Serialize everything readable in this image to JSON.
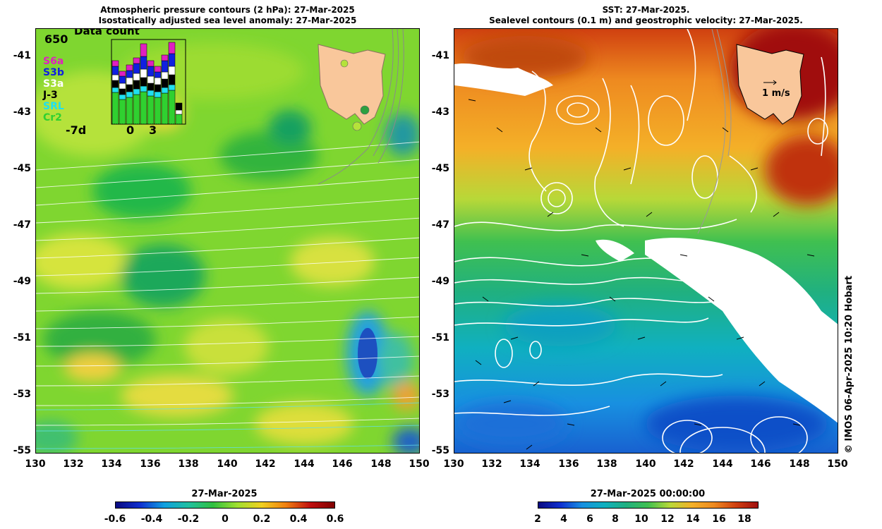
{
  "left": {
    "title_line1": "Atmospheric pressure contours (2 hPa): 27-Mar-2025",
    "title_line2": "Isostatically adjusted sea level anomaly: 27-Mar-2025",
    "colorbar_title": "27-Mar-2025",
    "colorbar_ticks": [
      "-0.6",
      "-0.4",
      "-0.2",
      "0",
      "0.2",
      "0.4",
      "0.6"
    ],
    "inset": {
      "title": "Data count",
      "ymax": "650",
      "series": [
        {
          "label": "S6a",
          "color": "#e020c0"
        },
        {
          "label": "S3b",
          "color": "#1020e0"
        },
        {
          "label": "S3a",
          "color": "#ffffff"
        },
        {
          "label": "J-3",
          "color": "#000000"
        },
        {
          "label": "SRL",
          "color": "#20e0f0"
        },
        {
          "label": "Cr2",
          "color": "#30d030"
        }
      ],
      "xticks": [
        "-7d",
        "0",
        "3"
      ]
    }
  },
  "right": {
    "title_line1": "SST: 27-Mar-2025.",
    "title_line2": "Sealevel contours (0.1 m) and geostrophic velocity: 27-Mar-2025.",
    "colorbar_title": "27-Mar-2025 00:00:00",
    "colorbar_ticks": [
      "2",
      "4",
      "6",
      "8",
      "10",
      "12",
      "14",
      "16",
      "18"
    ],
    "velocity_scale": "1 m/s"
  },
  "y_ticks": [
    "-41",
    "-43",
    "-45",
    "-47",
    "-49",
    "-51",
    "-53",
    "-55"
  ],
  "x_ticks": [
    "130",
    "132",
    "134",
    "136",
    "138",
    "140",
    "142",
    "144",
    "146",
    "148",
    "150"
  ],
  "credit": "© IMOS 06-Apr-2025 10:20 Hobart",
  "colors": {
    "land": "#f9c79b",
    "cloud": "#ffffff"
  }
}
